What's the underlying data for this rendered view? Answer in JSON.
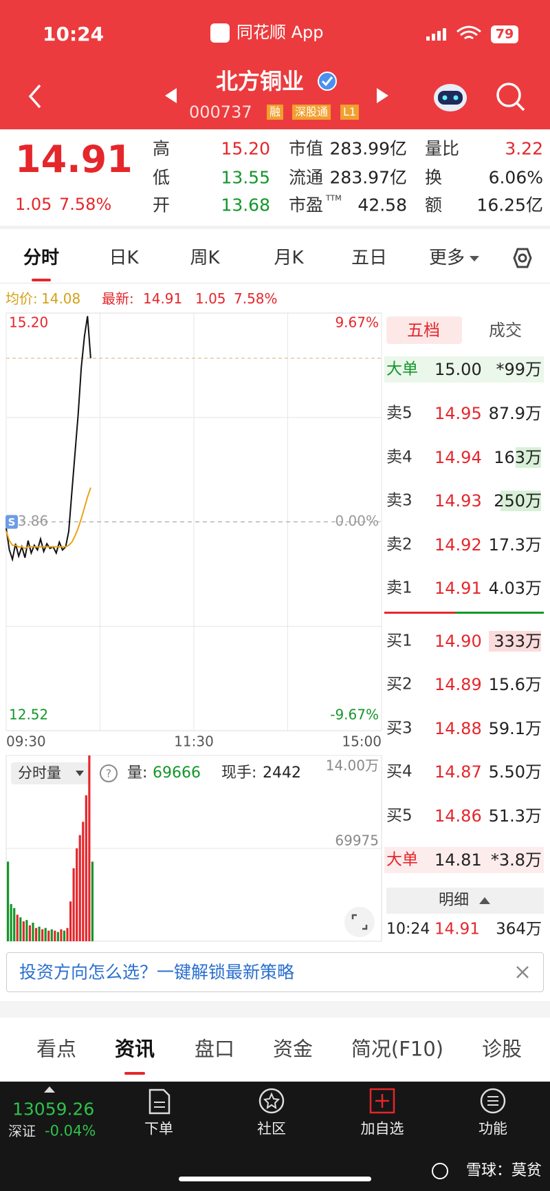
{
  "status_bar": {
    "time": "10:24",
    "app": "同花顺 App",
    "battery": "79"
  },
  "header": {
    "name": "北方铜业",
    "code": "000737",
    "badges": [
      "融",
      "深股通",
      "L1"
    ]
  },
  "quote": {
    "price": "14.91",
    "change": "1.05",
    "change_pct": "7.58%",
    "stats": [
      {
        "label": "高",
        "value": "15.20",
        "color": "#e5262b"
      },
      {
        "label": "低",
        "value": "13.55",
        "color": "#14962a"
      },
      {
        "label": "开",
        "value": "13.68",
        "color": "#14962a"
      },
      {
        "label": "市值",
        "value": "283.99亿",
        "color": "#222222"
      },
      {
        "label": "流通",
        "value": "283.97亿",
        "color": "#222222"
      },
      {
        "label": "市盈",
        "label_sup": "TTM",
        "value": "42.58",
        "color": "#222222"
      },
      {
        "label": "量比",
        "value": "3.22",
        "color": "#e5262b"
      },
      {
        "label": "换",
        "value": "6.06%",
        "color": "#222222"
      },
      {
        "label": "额",
        "value": "16.25亿",
        "color": "#222222"
      }
    ]
  },
  "tabs": {
    "items": [
      "分时",
      "日K",
      "周K",
      "月K",
      "五日",
      "更多"
    ],
    "active": 0
  },
  "chart_info": {
    "avg_label": "均价:",
    "avg": "14.08",
    "latest_label": "最新:",
    "latest": "14.91",
    "change": "1.05",
    "change_pct": "7.58%"
  },
  "chart_data": [
    {
      "type": "line",
      "x": [
        0,
        2,
        4,
        6,
        8,
        10,
        12,
        14,
        16,
        18,
        20,
        22,
        24,
        26,
        28,
        30,
        32,
        34,
        36,
        38,
        40,
        42,
        44,
        46,
        48,
        50,
        52,
        54
      ],
      "series": [
        {
          "color": "#111111",
          "values": [
            13.82,
            13.68,
            13.62,
            13.72,
            13.64,
            13.7,
            13.63,
            13.74,
            13.66,
            13.71,
            13.68,
            13.75,
            13.67,
            13.72,
            13.69,
            13.7,
            13.66,
            13.73,
            13.68,
            13.7,
            13.8,
            14.05,
            14.3,
            14.55,
            14.85,
            15.05,
            15.18,
            14.91
          ]
        },
        {
          "color": "#e8a317",
          "values": [
            13.8,
            13.74,
            13.71,
            13.71,
            13.7,
            13.7,
            13.69,
            13.7,
            13.7,
            13.7,
            13.7,
            13.7,
            13.7,
            13.7,
            13.7,
            13.7,
            13.7,
            13.7,
            13.7,
            13.7,
            13.71,
            13.73,
            13.77,
            13.82,
            13.88,
            13.95,
            14.02,
            14.08
          ]
        }
      ],
      "xlim": [
        0,
        240
      ],
      "xticks": [
        {
          "value": 0,
          "label": "09:30"
        },
        {
          "value": 120,
          "label": "11:30"
        },
        {
          "value": 240,
          "label": "15:00"
        }
      ],
      "ylim": [
        12.52,
        15.2
      ],
      "yticks": [
        {
          "value": 15.2,
          "label": "15.20"
        },
        13.86,
        12.52
      ],
      "y2lim": [
        -9.67,
        9.67
      ],
      "y2ticks": [
        {
          "value": 9.67,
          "label": "9.67%"
        },
        {
          "value": 0,
          "label": "0.00%"
        },
        {
          "value": -9.67,
          "label": "-9.67%"
        }
      ],
      "latest_line": 14.91,
      "marker": "S"
    },
    {
      "type": "bar",
      "title": "分时量",
      "stats": [
        {
          "label": "量:",
          "value": "69666"
        },
        {
          "label": "现手:",
          "value": "2442"
        }
      ],
      "values": [
        60000,
        28000,
        25000,
        20000,
        18000,
        15000,
        16000,
        12000,
        14000,
        10000,
        11000,
        9000,
        10000,
        8000,
        9000,
        8000,
        7000,
        9000,
        8000,
        10000,
        30000,
        55000,
        70000,
        80000,
        90000,
        110000,
        140000,
        60000
      ],
      "ylim": [
        0,
        140000
      ],
      "yticks": [
        {
          "value": 140000,
          "label": "14.00万"
        },
        69975
      ],
      "up_color": "#e5262b",
      "down_color": "#14962a"
    }
  ],
  "order_book": {
    "tabs": [
      "五档",
      "成交"
    ],
    "big_sell": {
      "label": "大单",
      "price": "15.00",
      "volume": "*99万"
    },
    "asks": [
      {
        "label": "卖5",
        "price": "14.95",
        "volume": "87.9万"
      },
      {
        "label": "卖4",
        "price": "14.94",
        "volume": "163万"
      },
      {
        "label": "卖3",
        "price": "14.93",
        "volume": "250万"
      },
      {
        "label": "卖2",
        "price": "14.92",
        "volume": "17.3万"
      },
      {
        "label": "卖1",
        "price": "14.91",
        "volume": "4.03万"
      }
    ],
    "bids": [
      {
        "label": "买1",
        "price": "14.90",
        "volume": "333万"
      },
      {
        "label": "买2",
        "price": "14.89",
        "volume": "15.6万"
      },
      {
        "label": "买3",
        "price": "14.88",
        "volume": "59.1万"
      },
      {
        "label": "买4",
        "price": "14.87",
        "volume": "5.50万"
      },
      {
        "label": "买5",
        "price": "14.86",
        "volume": "51.3万"
      }
    ],
    "big_buy": {
      "label": "大单",
      "price": "14.81",
      "volume": "*3.8万"
    },
    "detail": {
      "label": "明细",
      "time": "10:24",
      "price": "14.91",
      "volume": "364万"
    }
  },
  "banner": {
    "text": "投资方向怎么选？一键解锁最新策略"
  },
  "bottom_tabs": {
    "items": [
      "看点",
      "资讯",
      "盘口",
      "资金",
      "简况(F10)",
      "诊股"
    ],
    "active": 1
  },
  "footer": {
    "index_value": "13059.26",
    "index_name": "深证",
    "index_change": "-0.04%",
    "buttons": [
      "下单",
      "社区",
      "加自选",
      "功能"
    ],
    "watermark": "雪球：莫贫"
  }
}
